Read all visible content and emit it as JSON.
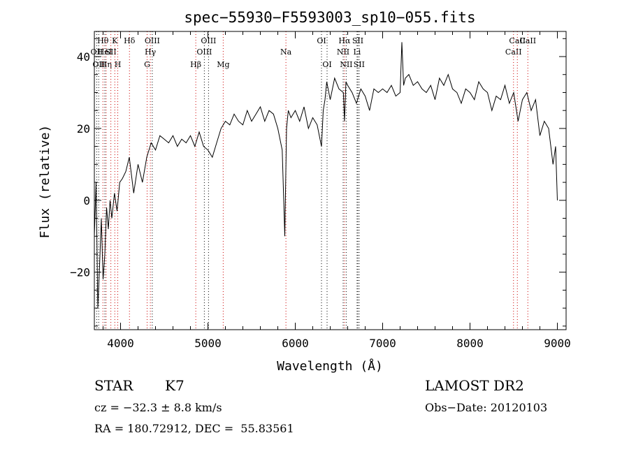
{
  "chart_data": {
    "type": "line",
    "title": "spec−55930−F5593003_sp10−055.fits",
    "xlabel": "Wavelength (Å)",
    "ylabel": "Flux (relative)",
    "xlim": [
      3700,
      9100
    ],
    "ylim": [
      -36,
      47
    ],
    "xticks": [
      {
        "value": 4000,
        "label": "4000"
      },
      {
        "value": 5000,
        "label": "5000"
      },
      {
        "value": 6000,
        "label": "6000"
      },
      {
        "value": 7000,
        "label": "7000"
      },
      {
        "value": 8000,
        "label": "8000"
      },
      {
        "value": 9000,
        "label": "9000"
      }
    ],
    "yticks": [
      {
        "value": -20,
        "label": "−20"
      },
      {
        "value": 0,
        "label": "0"
      },
      {
        "value": 20,
        "label": "20"
      },
      {
        "value": 40,
        "label": "40"
      }
    ],
    "grid": false,
    "series": [
      {
        "color": "#000000",
        "x": [
          3700,
          3720,
          3740,
          3760,
          3780,
          3800,
          3820,
          3840,
          3860,
          3880,
          3900,
          3930,
          3960,
          3990,
          4020,
          4060,
          4100,
          4150,
          4200,
          4250,
          4300,
          4350,
          4400,
          4450,
          4500,
          4550,
          4600,
          4650,
          4700,
          4750,
          4800,
          4850,
          4900,
          4950,
          5000,
          5050,
          5100,
          5150,
          5200,
          5250,
          5300,
          5350,
          5400,
          5450,
          5500,
          5550,
          5600,
          5650,
          5700,
          5750,
          5800,
          5850,
          5880,
          5900,
          5920,
          5950,
          6000,
          6050,
          6100,
          6150,
          6200,
          6250,
          6300,
          6320,
          6340,
          6360,
          6400,
          6450,
          6500,
          6550,
          6563,
          6580,
          6600,
          6650,
          6700,
          6750,
          6800,
          6850,
          6900,
          6950,
          7000,
          7050,
          7100,
          7150,
          7200,
          7220,
          7240,
          7260,
          7300,
          7350,
          7400,
          7450,
          7500,
          7550,
          7600,
          7650,
          7700,
          7750,
          7800,
          7850,
          7900,
          7950,
          8000,
          8050,
          8100,
          8150,
          8200,
          8250,
          8300,
          8350,
          8400,
          8450,
          8500,
          8550,
          8600,
          8650,
          8700,
          8750,
          8800,
          8850,
          8900,
          8950,
          8980,
          9000
        ],
        "y": [
          -10,
          5,
          -30,
          -18,
          -5,
          -22,
          -15,
          -2,
          -8,
          0,
          -5,
          2,
          -3,
          5,
          6,
          8,
          12,
          2,
          10,
          5,
          12,
          16,
          14,
          18,
          17,
          16,
          18,
          15,
          17,
          16,
          18,
          15,
          19,
          15,
          14,
          12,
          16,
          20,
          22,
          21,
          24,
          22,
          21,
          25,
          22,
          24,
          26,
          22,
          25,
          24,
          20,
          14,
          -10,
          20,
          25,
          23,
          25,
          22,
          26,
          20,
          23,
          21,
          15,
          25,
          28,
          33,
          28,
          34,
          31,
          30,
          22,
          33,
          32,
          30,
          27,
          31,
          29,
          25,
          31,
          30,
          31,
          30,
          32,
          29,
          30,
          44,
          32,
          34,
          35,
          32,
          33,
          31,
          30,
          32,
          28,
          34,
          32,
          35,
          31,
          30,
          27,
          31,
          30,
          28,
          33,
          31,
          30,
          25,
          29,
          28,
          32,
          27,
          30,
          22,
          28,
          30,
          25,
          28,
          18,
          22,
          20,
          10,
          15,
          0
        ]
      }
    ],
    "line_annotations": [
      {
        "wavelength": 3727,
        "label": "OII",
        "color": "#000000",
        "row": 2
      },
      {
        "wavelength": 3750,
        "label": "OII",
        "color": "#000000",
        "row": 3
      },
      {
        "wavelength": 3798,
        "label": "Hθ",
        "color": "#000000",
        "row": 1
      },
      {
        "wavelength": 3820,
        "label": "HeI",
        "color": "#000000",
        "row": 2
      },
      {
        "wavelength": 3835,
        "label": "Hη",
        "color": "#000000",
        "row": 3
      },
      {
        "wavelength": 3889,
        "label": "SII",
        "color": "#000000",
        "row": 2
      },
      {
        "wavelength": 3934,
        "label": "K",
        "color": "#000000",
        "row": 1
      },
      {
        "wavelength": 3968,
        "label": "H",
        "color": "#000000",
        "row": 3
      },
      {
        "wavelength": 4102,
        "label": "Hδ",
        "color": "#000000",
        "row": 1
      },
      {
        "wavelength": 4304,
        "label": "G",
        "color": "#000000",
        "row": 3
      },
      {
        "wavelength": 4341,
        "label": "Hγ",
        "color": "#000000",
        "row": 2
      },
      {
        "wavelength": 4363,
        "label": "OIII",
        "color": "#000000",
        "row": 1
      },
      {
        "wavelength": 4861,
        "label": "Hβ",
        "color": "#000000",
        "row": 3
      },
      {
        "wavelength": 4959,
        "label": "OIII",
        "color": "#000000",
        "row": 2
      },
      {
        "wavelength": 5007,
        "label": "OIII",
        "color": "#000000",
        "row": 1
      },
      {
        "wavelength": 5175,
        "label": "Mg",
        "color": "#000000",
        "row": 3
      },
      {
        "wavelength": 5893,
        "label": "Na",
        "color": "#000000",
        "row": 2
      },
      {
        "wavelength": 6300,
        "label": "OI",
        "color": "#000000",
        "row": 1
      },
      {
        "wavelength": 6364,
        "label": "OI",
        "color": "#000000",
        "row": 3
      },
      {
        "wavelength": 6548,
        "label": "NII",
        "color": "#000000",
        "row": 2
      },
      {
        "wavelength": 6563,
        "label": "Hα",
        "color": "#000000",
        "row": 1
      },
      {
        "wavelength": 6583,
        "label": "NII",
        "color": "#000000",
        "row": 3
      },
      {
        "wavelength": 6707,
        "label": "Li",
        "color": "#000000",
        "row": 2
      },
      {
        "wavelength": 6716,
        "label": "SII",
        "color": "#000000",
        "row": 1
      },
      {
        "wavelength": 6731,
        "label": "SII",
        "color": "#000000",
        "row": 3
      },
      {
        "wavelength": 8498,
        "label": "CaII",
        "color": "#000000",
        "row": 2
      },
      {
        "wavelength": 8542,
        "label": "CaII",
        "color": "#000000",
        "row": 1
      },
      {
        "wavelength": 8662,
        "label": "CaII",
        "color": "#000000",
        "row": 1
      }
    ],
    "line_colors": {
      "emission": "#000000",
      "absorption": "#cc0000"
    },
    "absorption_marks": [
      3798,
      3835,
      3889,
      3934,
      3968,
      4102,
      4304,
      4341,
      4861,
      5175,
      5893,
      6563,
      8498,
      8542,
      8662
    ]
  },
  "footer": {
    "object_class": "STAR",
    "subclass": "K7",
    "survey": "LAMOST DR2",
    "redshift": "cz = −32.3 ± 8.8 km/s",
    "obs_date": "Obs−Date: 20120103",
    "coords": "RA = 180.72912, DEC =  55.83561"
  }
}
